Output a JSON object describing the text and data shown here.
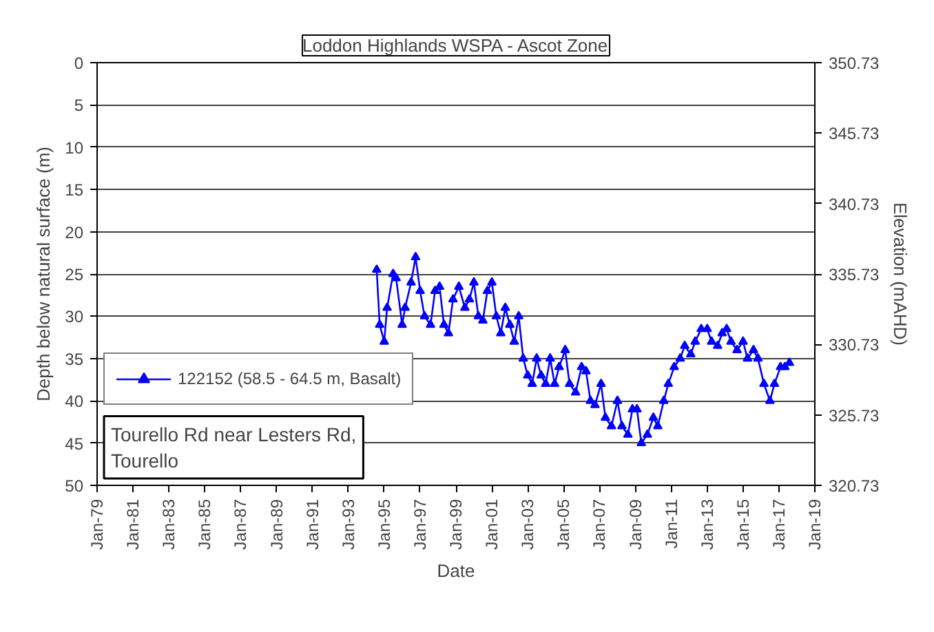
{
  "chart_data": {
    "type": "line",
    "title": "Loddon Highlands WSPA - Ascot Zone",
    "xlabel": "Date",
    "ylabel": "Depth below natural surface (m)",
    "y2label": "Elevation (mAHD)",
    "annotations": [
      "Tourello Rd near Lesters Rd, Tourello"
    ],
    "x": [
      "1994-08",
      "1994-10",
      "1995-01",
      "1995-03",
      "1995-07",
      "1995-09",
      "1996-01",
      "1996-03",
      "1996-07",
      "1996-10",
      "1997-01",
      "1997-04",
      "1997-08",
      "1997-11",
      "1998-02",
      "1998-05",
      "1998-08",
      "1998-11",
      "1999-03",
      "1999-07",
      "1999-10",
      "2000-01",
      "2000-04",
      "2000-07",
      "2000-10",
      "2001-01",
      "2001-04",
      "2001-07",
      "2001-10",
      "2002-01",
      "2002-04",
      "2002-07",
      "2002-10",
      "2003-01",
      "2003-04",
      "2003-07",
      "2003-10",
      "2004-01",
      "2004-04",
      "2004-07",
      "2004-10",
      "2005-02",
      "2005-05",
      "2005-09",
      "2006-01",
      "2006-04",
      "2006-07",
      "2006-10",
      "2007-02",
      "2007-05",
      "2007-09",
      "2008-01",
      "2008-04",
      "2008-08",
      "2008-11",
      "2009-02",
      "2009-05",
      "2009-09",
      "2010-01",
      "2010-04",
      "2010-08",
      "2010-11",
      "2011-03",
      "2011-07",
      "2011-10",
      "2012-02",
      "2012-05",
      "2012-09",
      "2013-01",
      "2013-04",
      "2013-08",
      "2013-11",
      "2014-02",
      "2014-05",
      "2014-09",
      "2015-01",
      "2015-04",
      "2015-08",
      "2015-11",
      "2016-03",
      "2016-07",
      "2016-10",
      "2017-02",
      "2017-05",
      "2017-08"
    ],
    "series": [
      {
        "name": "122152 (58.5 - 64.5 m, Basalt)",
        "color": "#0000ff",
        "values": [
          24.5,
          31,
          33,
          29,
          25,
          25.5,
          31,
          29,
          26,
          23,
          27,
          30,
          31,
          27,
          26.5,
          31,
          32,
          28,
          26.5,
          29,
          28,
          26,
          30,
          30.5,
          27,
          26,
          30,
          32,
          29,
          31,
          33,
          30,
          35,
          37,
          38,
          35,
          37,
          38,
          35,
          38,
          36,
          34,
          38,
          39,
          36,
          36.5,
          40,
          40.5,
          38,
          42,
          43,
          40,
          43,
          44,
          41,
          41,
          45,
          44,
          42,
          43,
          40,
          38,
          36,
          35,
          33.5,
          34.5,
          33,
          31.5,
          31.5,
          33,
          33.5,
          32,
          31.5,
          33,
          34,
          33,
          35,
          34,
          35,
          38,
          40,
          38,
          36,
          36,
          35.5
        ]
      }
    ],
    "ylim": [
      50,
      0
    ],
    "yticks": [
      0,
      5,
      10,
      15,
      20,
      25,
      30,
      35,
      40,
      45,
      50
    ],
    "y2lim": [
      320.73,
      350.73
    ],
    "y2ticks": [
      320.73,
      325.73,
      330.73,
      335.73,
      340.73,
      345.73,
      350.73
    ],
    "xlim": [
      "1979-01",
      "2019-01"
    ],
    "xticks": [
      {
        "value": "1979-01",
        "label": "Jan-79"
      },
      {
        "value": "1981-01",
        "label": "Jan-81"
      },
      {
        "value": "1983-01",
        "label": "Jan-83"
      },
      {
        "value": "1985-01",
        "label": "Jan-85"
      },
      {
        "value": "1987-01",
        "label": "Jan-87"
      },
      {
        "value": "1989-01",
        "label": "Jan-89"
      },
      {
        "value": "1991-01",
        "label": "Jan-91"
      },
      {
        "value": "1993-01",
        "label": "Jan-93"
      },
      {
        "value": "1995-01",
        "label": "Jan-95"
      },
      {
        "value": "1997-01",
        "label": "Jan-97"
      },
      {
        "value": "1999-01",
        "label": "Jan-99"
      },
      {
        "value": "2001-01",
        "label": "Jan-01"
      },
      {
        "value": "2003-01",
        "label": "Jan-03"
      },
      {
        "value": "2005-01",
        "label": "Jan-05"
      },
      {
        "value": "2007-01",
        "label": "Jan-07"
      },
      {
        "value": "2009-01",
        "label": "Jan-09"
      },
      {
        "value": "2011-01",
        "label": "Jan-11"
      },
      {
        "value": "2013-01",
        "label": "Jan-13"
      },
      {
        "value": "2015-01",
        "label": "Jan-15"
      },
      {
        "value": "2017-01",
        "label": "Jan-17"
      },
      {
        "value": "2019-01",
        "label": "Jan-19"
      }
    ],
    "grid": "y",
    "legend": "left",
    "marker": "triangle",
    "line_style": "solid"
  }
}
